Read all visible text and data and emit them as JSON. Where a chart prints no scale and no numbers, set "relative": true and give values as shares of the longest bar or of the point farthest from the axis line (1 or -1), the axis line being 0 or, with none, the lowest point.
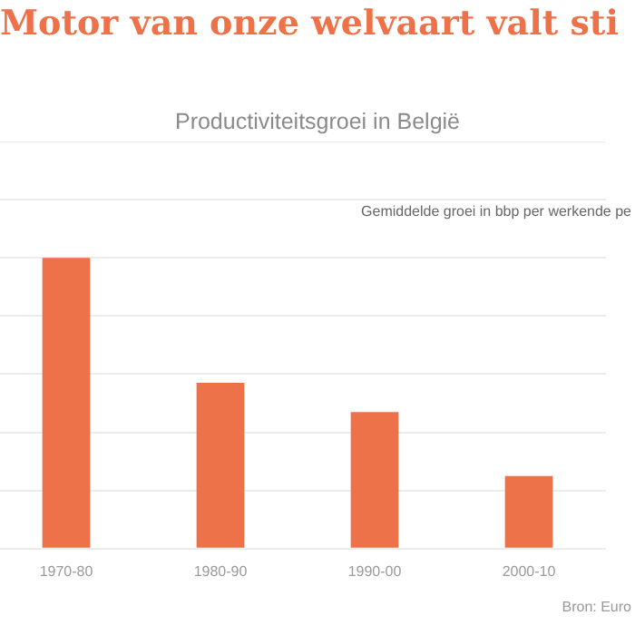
{
  "chart_data": {
    "type": "bar",
    "title": "Motor van onze welvaart valt sti",
    "subtitle": "Productiviteitsgroei in België",
    "categories": [
      "1970-80",
      "1980-90",
      "1990-00",
      "2000-10"
    ],
    "values": [
      1,
      0.57,
      0.47,
      0.25
    ],
    "relative": true,
    "color": "#ee7249",
    "grid": "y",
    "annotations": [
      "Gemiddelde groei in bbp per werkende pe",
      "Bron: Euro"
    ]
  }
}
